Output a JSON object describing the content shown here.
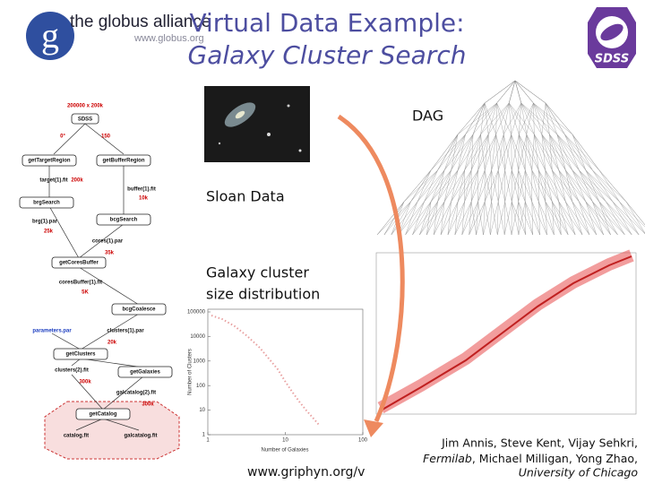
{
  "logo": {
    "name": "the globus alliance",
    "url": "www.globus.org"
  },
  "title": {
    "line1": "Virtual Data Example:",
    "line2": "Galaxy Cluster Search"
  },
  "sdss_logo": "SDSS",
  "labels": {
    "dag": "DAG",
    "sloan": "Sloan Data",
    "distribution": [
      "Galaxy cluster",
      "size distribution"
    ]
  },
  "workflow": {
    "header": "200000 x 200k",
    "source": "SDSS",
    "angles": [
      "0°",
      "150"
    ],
    "nodes": [
      "getTargetRegion",
      "getBufferRegion",
      "brgSearch",
      "bcgSearch",
      "getCoresBuffer",
      "bcgCoalesce",
      "getClusters",
      "getGalaxies",
      "getCatalog"
    ],
    "files": [
      "target(1).fit",
      "buffer(1).fit",
      "brg(1).par",
      "cores(1).par",
      "coresBuffer(1).fit",
      "parameters.par",
      "clusters(1).par",
      "clusters(2).fit",
      "galcatalog(2).fit",
      "catalog.fit",
      "galcatalog.fit"
    ],
    "sizes": [
      "200k",
      "10k",
      "25k",
      "35k",
      "5K",
      "20k",
      "300k",
      "300k"
    ]
  },
  "plot": {
    "yticks": [
      100000,
      10000,
      1000,
      100,
      10,
      1
    ],
    "xticks": [
      1,
      10,
      100
    ],
    "ylabel": "Number of Clusters",
    "xlabel": "Number of Galaxies"
  },
  "footer_url": "www.griphyn.org/v",
  "credits": [
    "Jim Annis, Steve Kent, Vijay Sehkri,",
    "Fermilab",
    ", Michael Milligan, Yong Zhao,",
    "University of Chicago"
  ]
}
